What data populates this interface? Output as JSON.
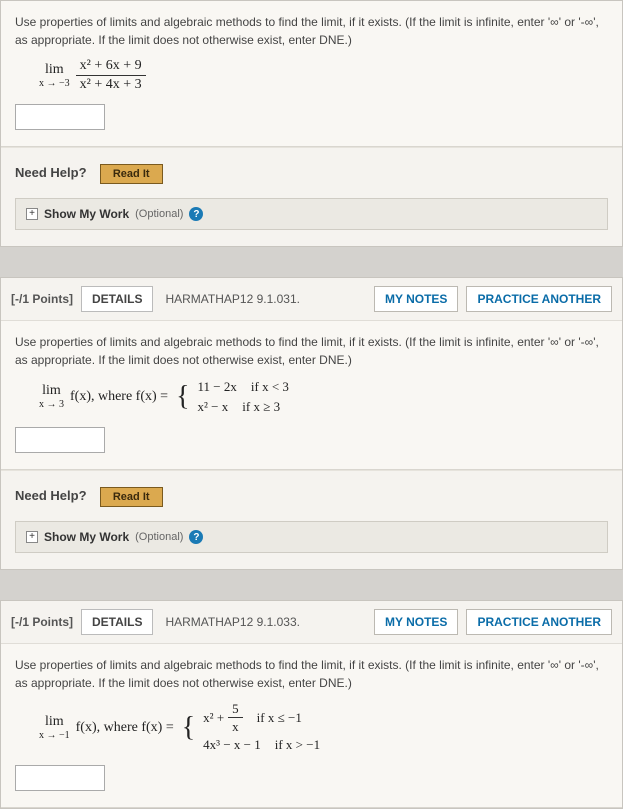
{
  "instructions": "Use properties of limits and algebraic methods to find the limit, if it exists. (If the limit is infinite, enter '∞' or '-∞', as appropriate. If the limit does not otherwise exist, enter DNE.)",
  "needHelpLabel": "Need Help?",
  "readItLabel": "Read It",
  "smwLabel": "Show My Work",
  "smwOptional": "(Optional)",
  "smwToggle": "+",
  "detailsLabel": "DETAILS",
  "notesLabel": "MY NOTES",
  "practiceLabel": "PRACTICE ANOTHER",
  "q1": {
    "limTop": "lim",
    "limBot": "x → −3",
    "fracNum": "x² + 6x + 9",
    "fracDen": "x² + 4x + 3"
  },
  "q2": {
    "points": "[-/1 Points]",
    "ref": "HARMATHAP12 9.1.031.",
    "limTop": "lim",
    "limBot": "x → 3",
    "fxLabel": "f(x), where f(x) =",
    "case1expr": "11 − 2x",
    "case1cond": "if x < 3",
    "case2expr": "x² − x",
    "case2cond": "if x ≥ 3"
  },
  "q3": {
    "points": "[-/1 Points]",
    "ref": "HARMATHAP12 9.1.033.",
    "limTop": "lim",
    "limBot": "x → −1",
    "fxLabel": "f(x), where f(x) =",
    "case1a": "x² +",
    "case1fracN": "5",
    "case1fracD": "x",
    "case1cond": "if x ≤ −1",
    "case2expr": "4x³ − x − 1",
    "case2cond": "if x > −1"
  }
}
